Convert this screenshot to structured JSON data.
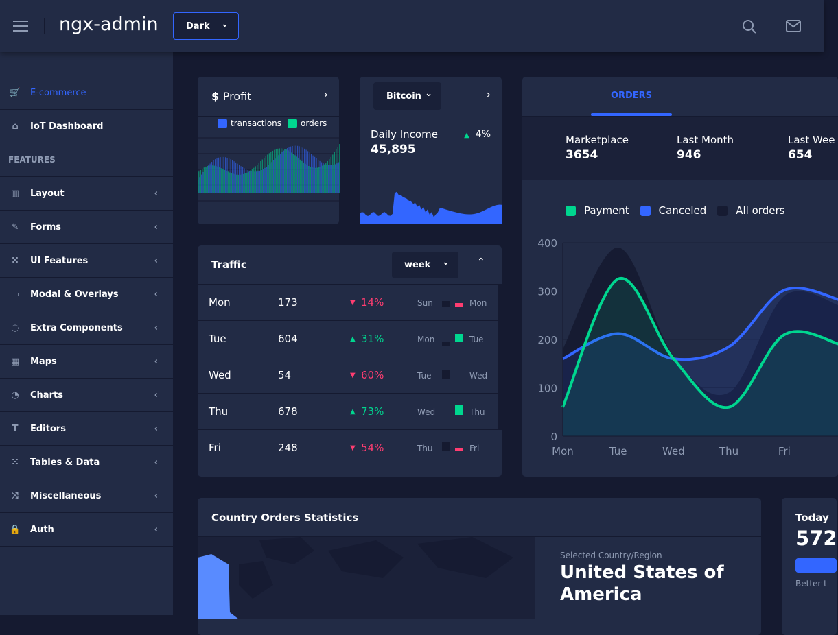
{
  "header": {
    "app_title": "ngx-admin",
    "theme_select": "Dark",
    "icons": [
      "menu-icon",
      "search-icon",
      "mail-icon"
    ]
  },
  "sidebar": {
    "items": [
      {
        "label": "E-commerce",
        "icon": "cart-icon",
        "active": true
      },
      {
        "label": "IoT Dashboard",
        "icon": "home-icon"
      },
      {
        "group": "FEATURES"
      },
      {
        "label": "Layout",
        "icon": "layout-icon"
      },
      {
        "label": "Forms",
        "icon": "edit-icon"
      },
      {
        "label": "UI Features",
        "icon": "grid-icon"
      },
      {
        "label": "Modal & Overlays",
        "icon": "browser-icon"
      },
      {
        "label": "Extra Components",
        "icon": "message-icon"
      },
      {
        "label": "Maps",
        "icon": "map-icon"
      },
      {
        "label": "Charts",
        "icon": "pie-chart-icon"
      },
      {
        "label": "Editors",
        "icon": "text-icon"
      },
      {
        "label": "Tables & Data",
        "icon": "grid-icon"
      },
      {
        "label": "Miscellaneous",
        "icon": "shuffle-icon"
      },
      {
        "label": "Auth",
        "icon": "lock-icon"
      }
    ]
  },
  "profit": {
    "title": "Profit",
    "currency_icon": "$",
    "legend": [
      "transactions",
      "orders"
    ]
  },
  "bitcoin": {
    "select": "Bitcoin",
    "label": "Daily Income",
    "value": "45,895",
    "delta": "4%"
  },
  "traffic": {
    "title": "Traffic",
    "period": "week",
    "rows": [
      {
        "day": "Mon",
        "value": "173",
        "delta": "14%",
        "dir": "down",
        "prev": "Sun",
        "cur": "Mon"
      },
      {
        "day": "Tue",
        "value": "604",
        "delta": "31%",
        "dir": "up",
        "prev": "Mon",
        "cur": "Tue"
      },
      {
        "day": "Wed",
        "value": "54",
        "delta": "60%",
        "dir": "down",
        "prev": "Tue",
        "cur": "Wed"
      },
      {
        "day": "Thu",
        "value": "678",
        "delta": "73%",
        "dir": "up",
        "prev": "Wed",
        "cur": "Thu"
      },
      {
        "day": "Fri",
        "value": "248",
        "delta": "54%",
        "dir": "down",
        "prev": "Thu",
        "cur": "Fri"
      }
    ]
  },
  "orders": {
    "tab": "ORDERS",
    "stats": [
      {
        "label": "Marketplace",
        "value": "3654"
      },
      {
        "label": "Last Month",
        "value": "946"
      },
      {
        "label": "Last Wee",
        "value": "654"
      }
    ],
    "legend": [
      "Payment",
      "Canceled",
      "All orders"
    ]
  },
  "chart_data": {
    "type": "area",
    "categories": [
      "Mon",
      "Tue",
      "Wed",
      "Thu",
      "Fri"
    ],
    "ylim": [
      0,
      400
    ],
    "yticks": [
      0,
      100,
      200,
      300,
      400
    ],
    "grid": true,
    "legend": "top",
    "series": [
      {
        "name": "All orders",
        "values": [
          180,
          390,
          165,
          90,
          290
        ],
        "color": "#161b32"
      },
      {
        "name": "Canceled",
        "values": [
          160,
          212,
          160,
          185,
          302
        ],
        "color": "#3366ff"
      },
      {
        "name": "Payment",
        "values": [
          60,
          325,
          160,
          60,
          210
        ],
        "color": "#00d68f"
      }
    ]
  },
  "country": {
    "title": "Country Orders Statistics",
    "label": "Selected Country/Region",
    "name": "United States of America"
  },
  "today": {
    "title": "Today",
    "value": "572",
    "note": "Better t"
  },
  "colors": {
    "primary": "#3366ff",
    "success": "#00d68f",
    "danger": "#ff3d71",
    "card": "#222b45",
    "bg": "#151a30"
  }
}
